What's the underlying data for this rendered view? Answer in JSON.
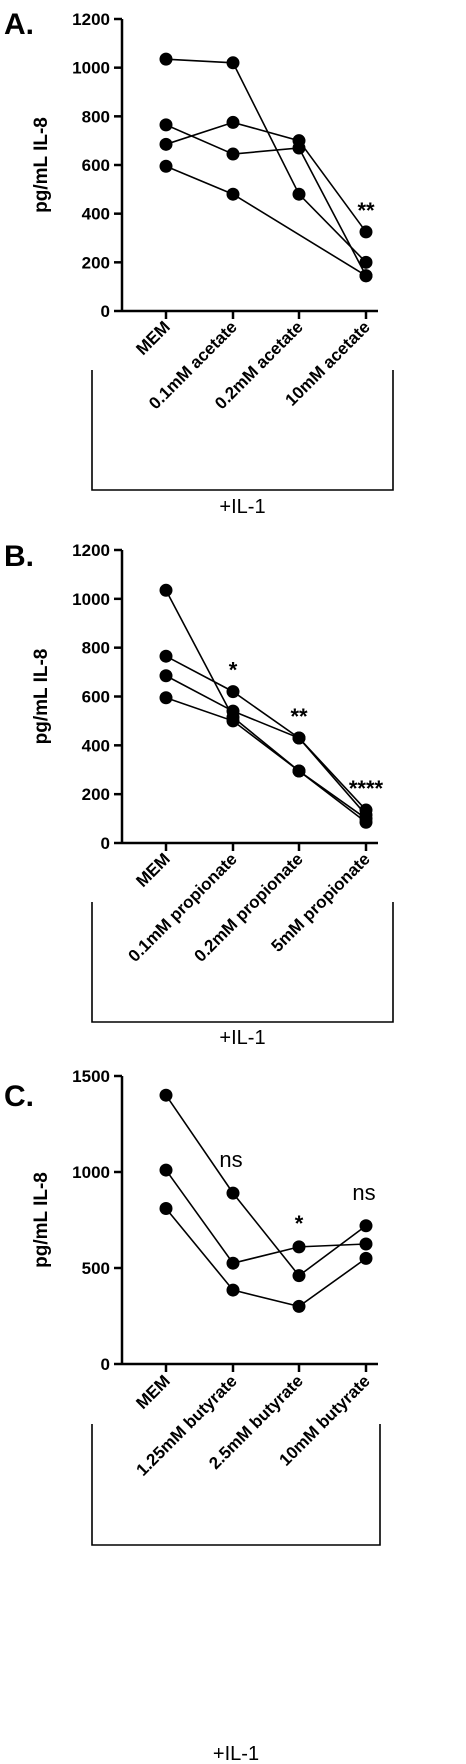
{
  "chart_data": [
    {
      "panel": "A.",
      "type": "line",
      "ylabel": "pg/mL IL-8",
      "ylim": [
        0,
        1200
      ],
      "yticks": [
        0,
        200,
        400,
        600,
        800,
        1000,
        1200
      ],
      "categories": [
        "MEM",
        "0.1mM acetate",
        "0.2mM acetate",
        "10mM acetate"
      ],
      "series": [
        {
          "values": [
            1035,
            1020,
            480,
            200
          ]
        },
        {
          "values": [
            765,
            645,
            670,
            145
          ]
        },
        {
          "values": [
            685,
            775,
            700,
            325
          ]
        },
        {
          "values": [
            595,
            480,
            null,
            145
          ]
        }
      ],
      "annotations": [
        {
          "category": "10mM acetate",
          "text": "**"
        }
      ],
      "bracket_label": "+IL-1"
    },
    {
      "panel": "B.",
      "type": "line",
      "ylabel": "pg/mL IL-8",
      "ylim": [
        0,
        1200
      ],
      "yticks": [
        0,
        200,
        400,
        600,
        800,
        1000,
        1200
      ],
      "categories": [
        "MEM",
        "0.1mM propionate",
        "0.2mM propionate",
        "5mM propionate"
      ],
      "series": [
        {
          "values": [
            1035,
            515,
            295,
            100
          ]
        },
        {
          "values": [
            765,
            620,
            430,
            135
          ]
        },
        {
          "values": [
            685,
            540,
            430,
            115
          ]
        },
        {
          "values": [
            595,
            500,
            295,
            85
          ]
        }
      ],
      "annotations": [
        {
          "category": "0.1mM propionate",
          "text": "*"
        },
        {
          "category": "0.2mM propionate",
          "text": "**"
        },
        {
          "category": "5mM propionate",
          "text": "****"
        }
      ],
      "bracket_label": "+IL-1"
    },
    {
      "panel": "C.",
      "type": "line",
      "ylabel": "pg/mL IL-8",
      "ylim": [
        0,
        1500
      ],
      "yticks": [
        0,
        500,
        1000,
        1500
      ],
      "categories": [
        "MEM",
        "1.25mM butyrate",
        "2.5mM butyrate",
        "10mM butyrate"
      ],
      "series": [
        {
          "values": [
            1400,
            890,
            460,
            720
          ]
        },
        {
          "values": [
            1010,
            525,
            610,
            625
          ]
        },
        {
          "values": [
            810,
            385,
            300,
            550
          ]
        }
      ],
      "annotations": [
        {
          "category": "1.25mM butyrate",
          "text": "ns"
        },
        {
          "category": "2.5mM butyrate",
          "text": "*"
        },
        {
          "category": "10mM butyrate",
          "text": "ns"
        }
      ],
      "bracket_label": "+IL-1"
    }
  ]
}
